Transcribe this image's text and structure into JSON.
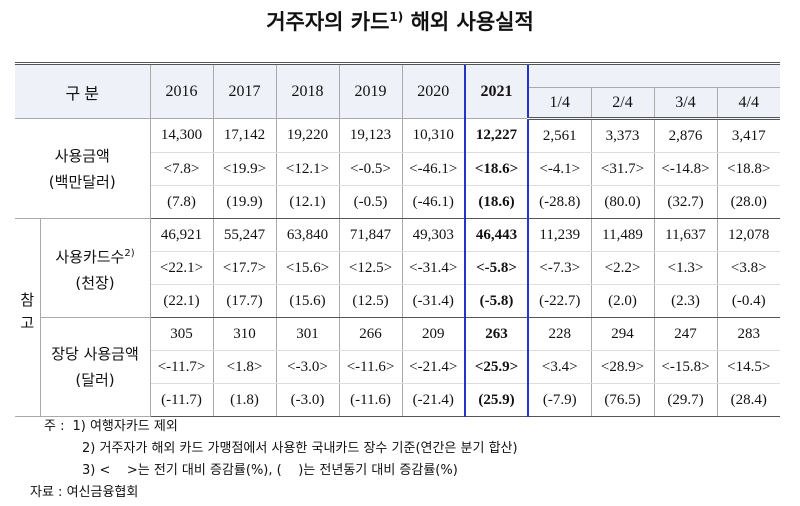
{
  "title": {
    "text": "거주자의 카드",
    "sup": "1)",
    "rest": "해외 사용실적"
  },
  "table": {
    "header": {
      "label": "구 분",
      "years": [
        "2016",
        "2017",
        "2018",
        "2019",
        "2020",
        "2021"
      ],
      "quarters": [
        "1/4",
        "2/4",
        "3/4",
        "4/4"
      ]
    },
    "side_label": "참고",
    "groups": [
      {
        "label": "사용금액",
        "unit": "(백만달러)",
        "rows": [
          [
            "14,300",
            "17,142",
            "19,220",
            "19,123",
            "10,310",
            "12,227",
            "2,561",
            "3,373",
            "2,876",
            "3,417"
          ],
          [
            "<7.8>",
            "<19.9>",
            "<12.1>",
            "<-0.5>",
            "<-46.1>",
            "<18.6>",
            "<-4.1>",
            "<31.7>",
            "<-14.8>",
            "<18.8>"
          ],
          [
            "(7.8)",
            "(19.9)",
            "(12.1)",
            "(-0.5)",
            "(-46.1)",
            "(18.6)",
            "(-28.8)",
            "(80.0)",
            "(32.7)",
            "(28.0)"
          ]
        ]
      },
      {
        "label": "사용카드수",
        "sup": "2)",
        "unit": "(천장)",
        "rows": [
          [
            "46,921",
            "55,247",
            "63,840",
            "71,847",
            "49,303",
            "46,443",
            "11,239",
            "11,489",
            "11,637",
            "12,078"
          ],
          [
            "<22.1>",
            "<17.7>",
            "<15.6>",
            "<12.5>",
            "<-31.4>",
            "<-5.8>",
            "<-7.3>",
            "<2.2>",
            "<1.3>",
            "<3.8>"
          ],
          [
            "(22.1)",
            "(17.7)",
            "(15.6)",
            "(12.5)",
            "(-31.4)",
            "(-5.8)",
            "(-22.7)",
            "(2.0)",
            "(2.3)",
            "(-0.4)"
          ]
        ]
      },
      {
        "label": "장당 사용금액",
        "unit": "(달러)",
        "rows": [
          [
            "305",
            "310",
            "301",
            "266",
            "209",
            "263",
            "228",
            "294",
            "247",
            "283"
          ],
          [
            "<-11.7>",
            "<1.8>",
            "<-3.0>",
            "<-11.6>",
            "<-21.4>",
            "<25.9>",
            "<3.4>",
            "<28.9>",
            "<-15.8>",
            "<14.5>"
          ],
          [
            "(-11.7)",
            "(1.8)",
            "(-3.0)",
            "(-11.6)",
            "(-21.4)",
            "(25.9)",
            "(-7.9)",
            "(76.5)",
            "(29.7)",
            "(28.4)"
          ]
        ]
      }
    ]
  },
  "notes": {
    "prefix": "주 :",
    "items": [
      "1) 여행자카드 제외",
      "2) 거주자가 해외 카드 가맹점에서 사용한 국내카드 장수 기준(연간은 분기 합산)",
      "3) <    >는 전기 대비 증감률(%), (    )는 전년동기 대비 증감률(%)"
    ]
  },
  "source": "자료 : 여신금융협회"
}
